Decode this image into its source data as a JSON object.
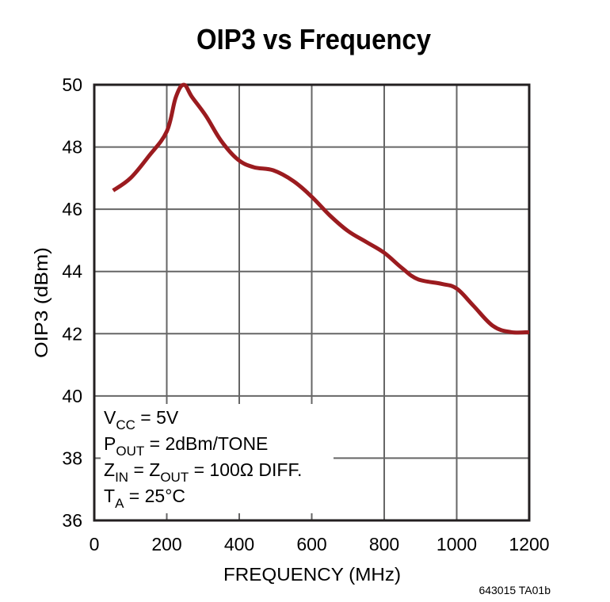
{
  "chart_data": {
    "type": "line",
    "title": "OIP3 vs Frequency",
    "xlabel": "FREQUENCY (MHz)",
    "ylabel": "OIP3 (dBm)",
    "xlim": [
      0,
      1200
    ],
    "ylim": [
      36,
      50
    ],
    "x_ticks": [
      "0",
      "200",
      "400",
      "600",
      "800",
      "1000",
      "1200"
    ],
    "y_ticks": [
      "36",
      "38",
      "40",
      "42",
      "44",
      "46",
      "48",
      "50"
    ],
    "grid": true,
    "series_color": "#9b1b1f",
    "series": [
      {
        "x": [
          52,
          100,
          150,
          200,
          225,
          247,
          270,
          308,
          350,
          396,
          440,
          494,
          550,
          600,
          650,
          700,
          750,
          800,
          850,
          893,
          959,
          1000,
          1046,
          1100,
          1150,
          1200
        ],
        "y": [
          46.6,
          47.0,
          47.7,
          48.5,
          49.6,
          50.0,
          49.6,
          49.0,
          48.2,
          47.6,
          47.35,
          47.25,
          46.9,
          46.4,
          45.8,
          45.3,
          44.95,
          44.6,
          44.1,
          43.75,
          43.6,
          43.45,
          42.9,
          42.25,
          42.05,
          42.05
        ]
      }
    ],
    "annotation": [
      {
        "main": "V",
        "sub": "CC",
        "rest": " = 5V"
      },
      {
        "main": "P",
        "sub": "OUT",
        "rest": " = 2dBm/TONE"
      },
      {
        "main": "Z",
        "sub": "IN",
        "mid": " = Z",
        "sub2": "OUT",
        "rest": " = 100Ω DIFF."
      },
      {
        "main": "T",
        "sub": "A",
        "rest": " = 25°C"
      }
    ],
    "figure_code": "643015 TA01b"
  }
}
